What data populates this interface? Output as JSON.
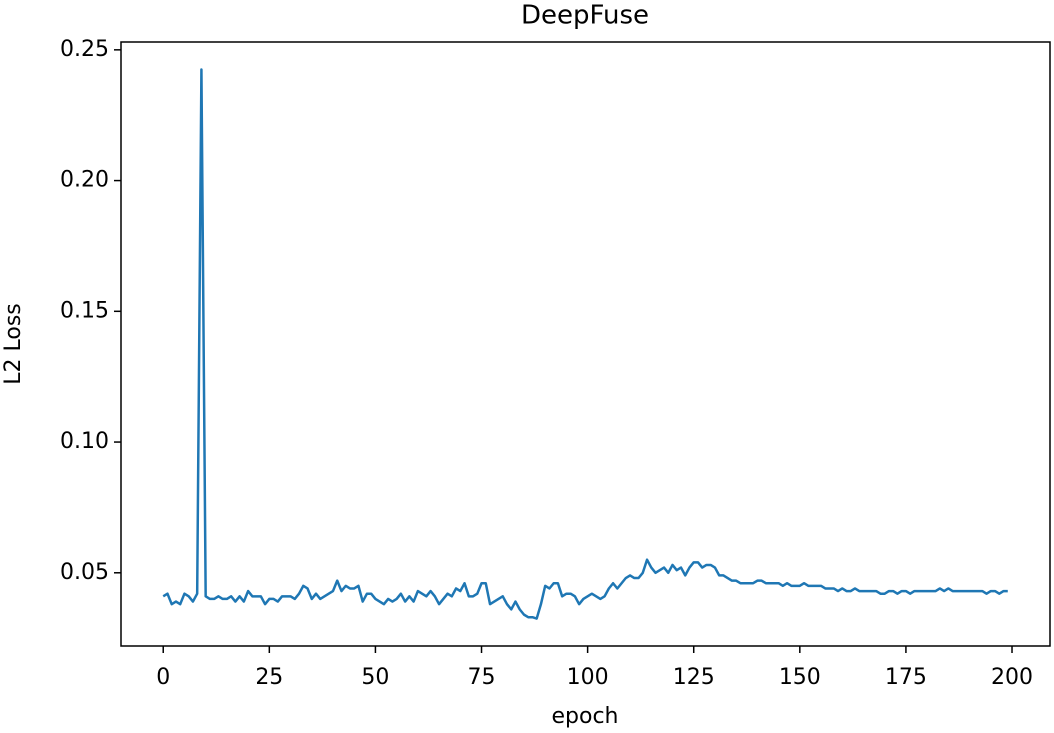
{
  "chart_data": {
    "type": "line",
    "title": "DeepFuse",
    "x_label": "epoch",
    "y_label": "L2 Loss",
    "x": [
      0,
      1,
      2,
      3,
      4,
      5,
      6,
      7,
      8,
      9,
      10,
      11,
      12,
      13,
      14,
      15,
      16,
      17,
      18,
      19,
      20,
      21,
      22,
      23,
      24,
      25,
      26,
      27,
      28,
      29,
      30,
      31,
      32,
      33,
      34,
      35,
      36,
      37,
      38,
      39,
      40,
      41,
      42,
      43,
      44,
      45,
      46,
      47,
      48,
      49,
      50,
      51,
      52,
      53,
      54,
      55,
      56,
      57,
      58,
      59,
      60,
      61,
      62,
      63,
      64,
      65,
      66,
      67,
      68,
      69,
      70,
      71,
      72,
      73,
      74,
      75,
      76,
      77,
      78,
      79,
      80,
      81,
      82,
      83,
      84,
      85,
      86,
      87,
      88,
      89,
      90,
      91,
      92,
      93,
      94,
      95,
      96,
      97,
      98,
      99,
      100,
      101,
      102,
      103,
      104,
      105,
      106,
      107,
      108,
      109,
      110,
      111,
      112,
      113,
      114,
      115,
      116,
      117,
      118,
      119,
      120,
      121,
      122,
      123,
      124,
      125,
      126,
      127,
      128,
      129,
      130,
      131,
      132,
      133,
      134,
      135,
      136,
      137,
      138,
      139,
      140,
      141,
      142,
      143,
      144,
      145,
      146,
      147,
      148,
      149,
      150,
      151,
      152,
      153,
      154,
      155,
      156,
      157,
      158,
      159,
      160,
      161,
      162,
      163,
      164,
      165,
      166,
      167,
      168,
      169,
      170,
      171,
      172,
      173,
      174,
      175,
      176,
      177,
      178,
      179,
      180,
      181,
      182,
      183,
      184,
      185,
      186,
      187,
      188,
      189,
      190,
      191,
      192,
      193,
      194,
      195,
      196,
      197,
      198,
      199
    ],
    "series": [
      {
        "name": "DeepFuse",
        "color": "#1f77b4",
        "values": [
          0.041,
          0.042,
          0.038,
          0.039,
          0.038,
          0.042,
          0.041,
          0.039,
          0.042,
          0.2425,
          0.041,
          0.04,
          0.04,
          0.041,
          0.04,
          0.04,
          0.041,
          0.039,
          0.041,
          0.039,
          0.043,
          0.041,
          0.041,
          0.041,
          0.038,
          0.04,
          0.04,
          0.039,
          0.041,
          0.041,
          0.041,
          0.04,
          0.042,
          0.045,
          0.044,
          0.04,
          0.042,
          0.04,
          0.041,
          0.042,
          0.043,
          0.047,
          0.043,
          0.045,
          0.044,
          0.044,
          0.045,
          0.039,
          0.042,
          0.042,
          0.04,
          0.039,
          0.038,
          0.04,
          0.039,
          0.04,
          0.042,
          0.039,
          0.041,
          0.039,
          0.043,
          0.042,
          0.041,
          0.043,
          0.041,
          0.038,
          0.04,
          0.042,
          0.041,
          0.044,
          0.043,
          0.046,
          0.041,
          0.041,
          0.042,
          0.046,
          0.046,
          0.038,
          0.039,
          0.04,
          0.041,
          0.038,
          0.036,
          0.039,
          0.036,
          0.034,
          0.033,
          0.033,
          0.0325,
          0.038,
          0.045,
          0.044,
          0.046,
          0.046,
          0.041,
          0.042,
          0.042,
          0.041,
          0.038,
          0.04,
          0.041,
          0.042,
          0.041,
          0.04,
          0.041,
          0.044,
          0.046,
          0.044,
          0.046,
          0.048,
          0.049,
          0.048,
          0.048,
          0.05,
          0.055,
          0.052,
          0.05,
          0.051,
          0.052,
          0.05,
          0.053,
          0.051,
          0.052,
          0.049,
          0.052,
          0.054,
          0.054,
          0.052,
          0.053,
          0.053,
          0.052,
          0.049,
          0.049,
          0.048,
          0.047,
          0.047,
          0.046,
          0.046,
          0.046,
          0.046,
          0.047,
          0.047,
          0.046,
          0.046,
          0.046,
          0.046,
          0.045,
          0.046,
          0.045,
          0.045,
          0.045,
          0.046,
          0.045,
          0.045,
          0.045,
          0.045,
          0.044,
          0.044,
          0.044,
          0.043,
          0.044,
          0.043,
          0.043,
          0.044,
          0.043,
          0.043,
          0.043,
          0.043,
          0.043,
          0.042,
          0.042,
          0.043,
          0.043,
          0.042,
          0.043,
          0.043,
          0.042,
          0.043,
          0.043,
          0.043,
          0.043,
          0.043,
          0.043,
          0.044,
          0.043,
          0.044,
          0.043,
          0.043,
          0.043,
          0.043,
          0.043,
          0.043,
          0.043,
          0.043,
          0.042,
          0.043,
          0.043,
          0.042,
          0.043,
          0.043
        ]
      }
    ],
    "xlim": [
      -9.95,
      208.95
    ],
    "xticks": [
      0,
      25,
      50,
      75,
      100,
      125,
      150,
      175,
      200
    ],
    "ylim": [
      0.022,
      0.253
    ],
    "yticks": [
      0.05,
      {
        "value": 0.1,
        "label": "0.10"
      },
      0.15,
      {
        "value": 0.2,
        "label": "0.20"
      },
      0.25
    ],
    "grid": false
  }
}
